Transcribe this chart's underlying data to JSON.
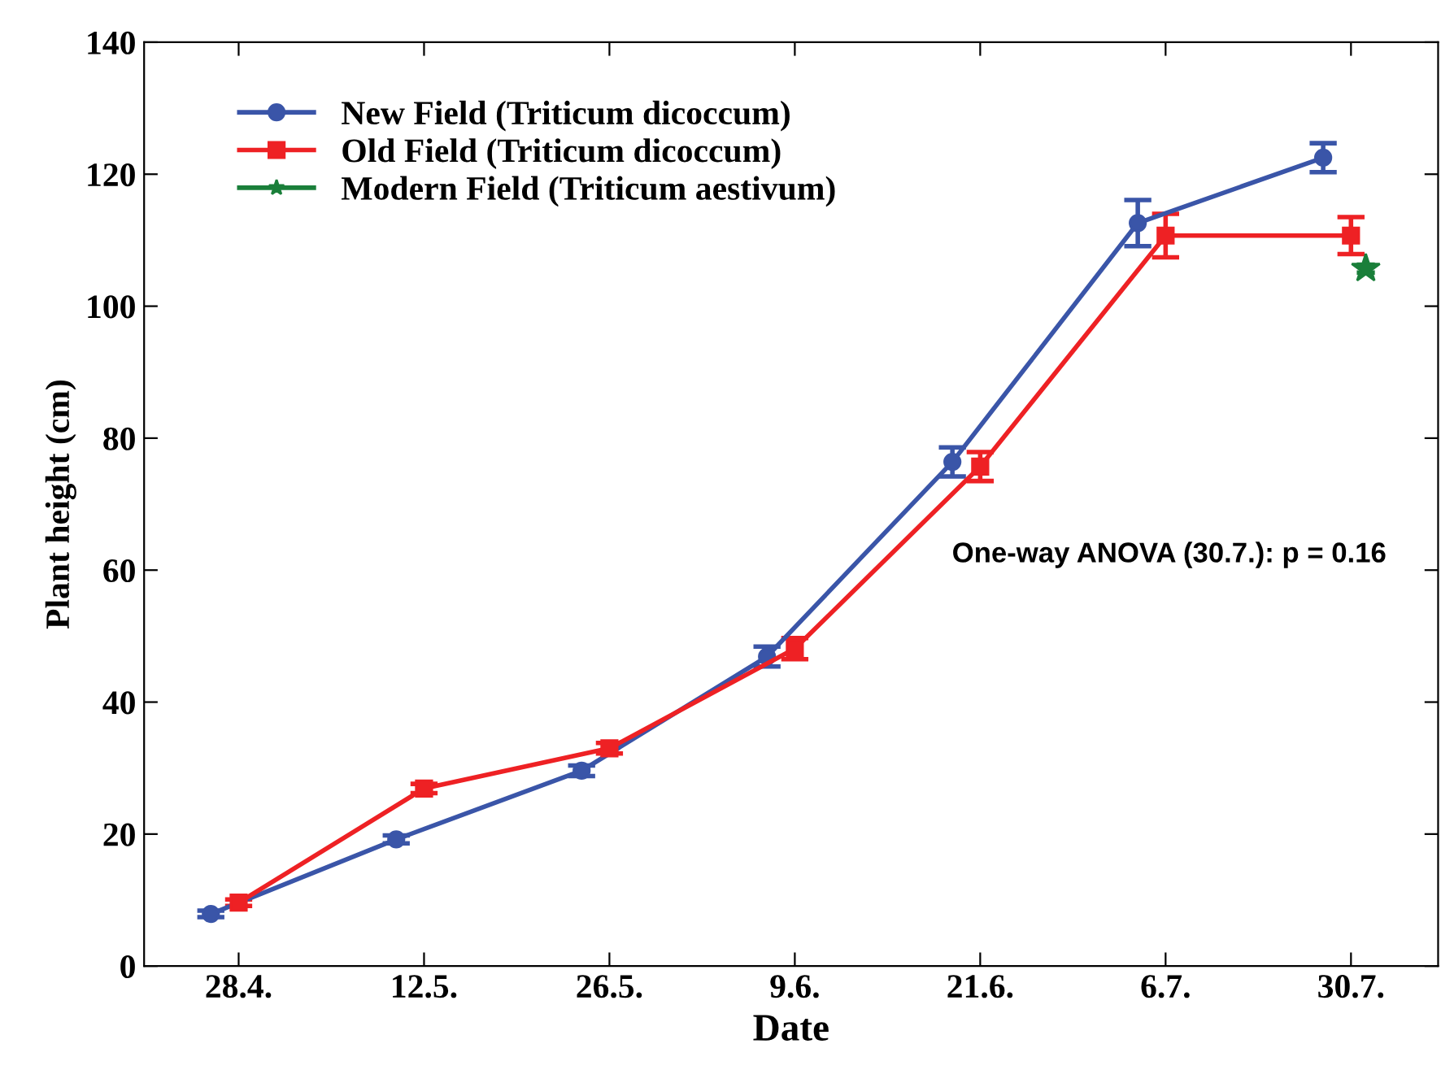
{
  "chart_data": {
    "type": "line",
    "xlabel": "Date",
    "ylabel": "Plant height (cm)",
    "categories": [
      "28.4.",
      "12.5.",
      "26.5.",
      "9.6.",
      "21.6.",
      "6.7.",
      "30.7."
    ],
    "series": [
      {
        "name": "New Field (Triticum dicoccum)",
        "color": "#3a55a8",
        "marker": "circle",
        "values": [
          7.9,
          19.2,
          29.6,
          46.9,
          76.4,
          112.6,
          122.5
        ],
        "errors": [
          0.5,
          0.6,
          0.8,
          1.5,
          2.2,
          3.5,
          2.2
        ]
      },
      {
        "name": "Old Field (Triticum dicoccum)",
        "color": "#ee2124",
        "marker": "square",
        "values": [
          9.6,
          26.9,
          33.0,
          48.1,
          75.7,
          110.7,
          110.7
        ],
        "errors": [
          0.5,
          0.7,
          0.8,
          1.6,
          2.2,
          3.3,
          2.8
        ]
      },
      {
        "name": "Modern Field (Triticum aestivum)",
        "color": "#1a7f3a",
        "marker": "star",
        "values": [
          null,
          null,
          null,
          null,
          null,
          null,
          105.7
        ],
        "errors": [
          null,
          null,
          null,
          null,
          null,
          null,
          0.6
        ]
      }
    ],
    "ylim": [
      0,
      140
    ],
    "yticks": [
      0,
      20,
      40,
      60,
      80,
      100,
      120,
      140
    ],
    "grid": false,
    "legend": "top left",
    "line_style": "solid",
    "annotations": [
      "One-way ANOVA (30.7.): p = 0.16"
    ]
  }
}
